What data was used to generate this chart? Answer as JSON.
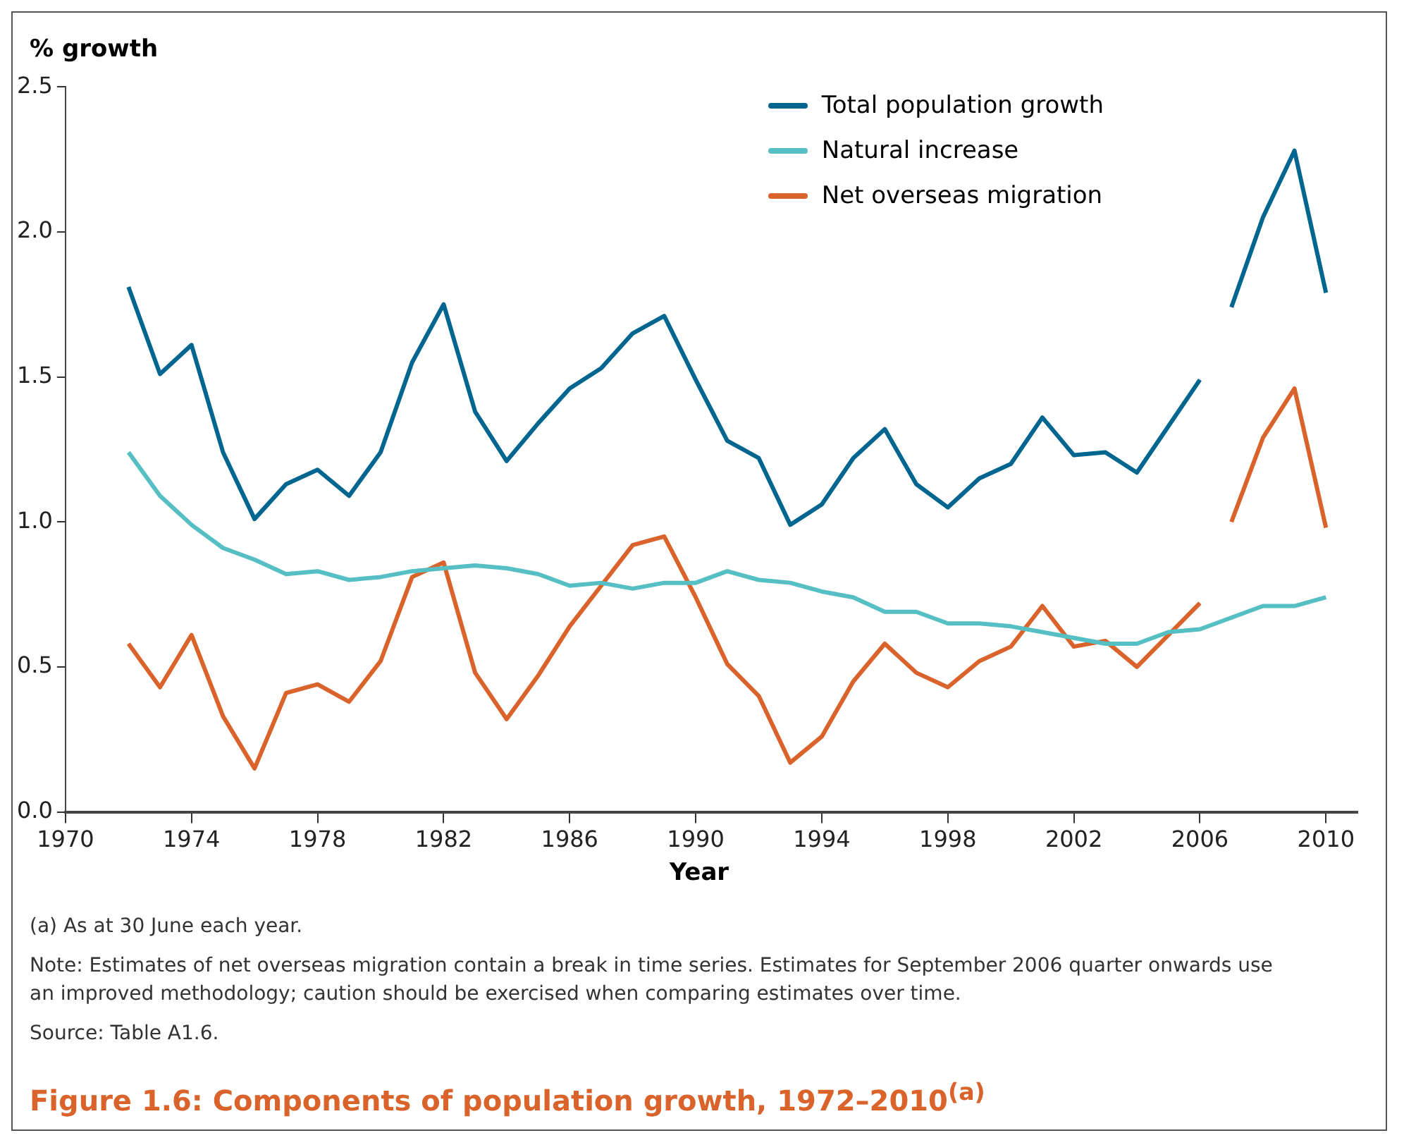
{
  "chart_data": {
    "type": "line",
    "title": "Figure 1.6: Components of population growth, 1972–2010$^{(a)}$",
    "xlabel": "Year",
    "ylabel": "% growth",
    "x": [
      1972,
      1973,
      1974,
      1975,
      1976,
      1977,
      1978,
      1979,
      1980,
      1981,
      1982,
      1983,
      1984,
      1985,
      1986,
      1987,
      1988,
      1989,
      1990,
      1991,
      1992,
      1993,
      1994,
      1995,
      1996,
      1997,
      1998,
      1999,
      2000,
      2001,
      2002,
      2003,
      2004,
      2005,
      2006,
      2007,
      2008,
      2009,
      2010
    ],
    "series": [
      {
        "name": "Total population growth",
        "color": "#00668f",
        "x": [
          1972,
          1973,
          1974,
          1975,
          1976,
          1977,
          1978,
          1979,
          1980,
          1981,
          1982,
          1983,
          1984,
          1985,
          1986,
          1987,
          1988,
          1989,
          1990,
          1991,
          1992,
          1993,
          1994,
          1995,
          1996,
          1997,
          1998,
          1999,
          2000,
          2001,
          2002,
          2003,
          2004,
          2005,
          2006,
          2006.5,
          2007,
          2008,
          2009,
          2010
        ],
        "values": [
          1.81,
          1.51,
          1.61,
          1.24,
          1.01,
          1.13,
          1.18,
          1.09,
          1.24,
          1.55,
          1.75,
          1.38,
          1.21,
          1.34,
          1.46,
          1.53,
          1.65,
          1.71,
          1.49,
          1.28,
          1.22,
          0.99,
          1.06,
          1.22,
          1.32,
          1.13,
          1.05,
          1.15,
          1.2,
          1.36,
          1.23,
          1.24,
          1.17,
          1.33,
          1.49,
          null,
          1.74,
          2.05,
          2.28,
          1.79
        ]
      },
      {
        "name": "Natural increase",
        "color": "#55bfc4",
        "values": [
          1.24,
          1.09,
          0.99,
          0.91,
          0.87,
          0.82,
          0.83,
          0.8,
          0.81,
          0.83,
          0.84,
          0.85,
          0.84,
          0.82,
          0.78,
          0.79,
          0.77,
          0.79,
          0.79,
          0.83,
          0.8,
          0.79,
          0.76,
          0.74,
          0.69,
          0.69,
          0.65,
          0.65,
          0.64,
          0.62,
          0.6,
          0.58,
          0.58,
          0.62,
          0.63,
          0.67,
          0.71,
          0.71,
          0.74
        ]
      },
      {
        "name": "Net overseas migration",
        "color": "#d9632a",
        "x": [
          1972,
          1973,
          1974,
          1975,
          1976,
          1977,
          1978,
          1979,
          1980,
          1981,
          1982,
          1983,
          1984,
          1985,
          1986,
          1987,
          1988,
          1989,
          1990,
          1991,
          1992,
          1993,
          1994,
          1995,
          1996,
          1997,
          1998,
          1999,
          2000,
          2001,
          2002,
          2003,
          2004,
          2005,
          2006,
          2006.5,
          2007,
          2008,
          2009,
          2010
        ],
        "values": [
          0.58,
          0.43,
          0.61,
          0.33,
          0.15,
          0.41,
          0.44,
          0.38,
          0.52,
          0.81,
          0.86,
          0.48,
          0.32,
          0.47,
          0.64,
          0.78,
          0.92,
          0.95,
          0.74,
          0.51,
          0.4,
          0.17,
          0.26,
          0.45,
          0.58,
          0.48,
          0.43,
          0.52,
          0.57,
          0.71,
          0.57,
          0.59,
          0.5,
          0.61,
          0.72,
          null,
          1.0,
          1.29,
          1.46,
          0.98
        ]
      }
    ],
    "xlim": [
      1970,
      2011
    ],
    "xticks": [
      1970,
      1974,
      1978,
      1982,
      1986,
      1990,
      1994,
      1998,
      2002,
      2006,
      2010
    ],
    "ylim": [
      0,
      2.5
    ],
    "yticks": [
      {
        "value": 0,
        "label": "0.0"
      },
      {
        "value": 0.5,
        "label": "0.5"
      },
      {
        "value": 1,
        "label": "1.0"
      },
      {
        "value": 1.5,
        "label": "1.5"
      },
      {
        "value": 2,
        "label": "2.0"
      },
      {
        "value": 2.5,
        "label": "2.5"
      }
    ],
    "grid": false,
    "legend": "top right",
    "marker": "none",
    "line_style": "solid",
    "annotations": [
      "(a)  As at 30 June each year.",
      "Note: Estimates of net overseas migration contain a break in time series. Estimates for September 2006 quarter onwards use an improved methodology; caution should be exercised when comparing estimates over time.",
      "Source: Table A1.6."
    ]
  }
}
